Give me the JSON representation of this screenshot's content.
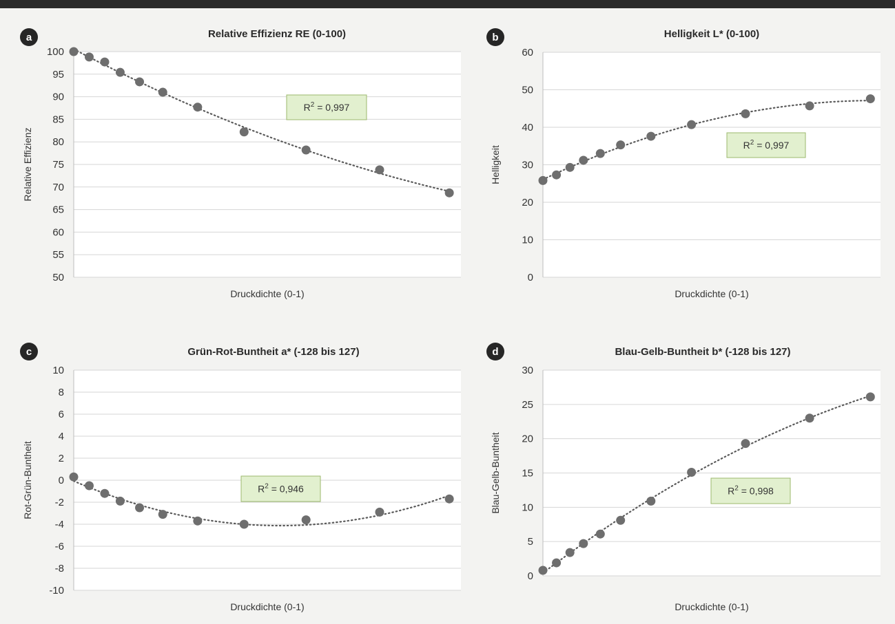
{
  "chart_data": [
    {
      "id": "a",
      "badge": "a",
      "type": "scatter",
      "title": "Relative Effizienz RE (0-100)",
      "xlabel": "Druckdichte (0-1)",
      "ylabel": "Relative Effizienz",
      "ylim": [
        50,
        100
      ],
      "yticks": [
        50,
        55,
        60,
        65,
        70,
        75,
        80,
        85,
        90,
        95,
        100
      ],
      "xlim": [
        0,
        1
      ],
      "grid": true,
      "x": [
        0.0,
        0.04,
        0.08,
        0.12,
        0.17,
        0.23,
        0.32,
        0.44,
        0.6,
        0.79,
        0.97
      ],
      "y": [
        100,
        98.8,
        97.7,
        95.4,
        93.3,
        91.0,
        87.7,
        82.2,
        78.2,
        73.8,
        68.7
      ],
      "fit_label_prefix": "R",
      "fit_label_sup": "2",
      "fit_label_value": " = 0,997",
      "trendline": "dotted",
      "colors": {
        "point": "#6e6e6e",
        "trend": "#5a5a5a",
        "r2_box": "#e2f0cf",
        "r2_border": "#9cb86e"
      }
    },
    {
      "id": "b",
      "badge": "b",
      "type": "scatter",
      "title": "Helligkeit L* (0-100)",
      "xlabel": "Druckdichte (0-1)",
      "ylabel": "Helligkeit",
      "ylim": [
        0,
        60
      ],
      "yticks": [
        0,
        10,
        20,
        30,
        40,
        50,
        60
      ],
      "xlim": [
        0,
        1
      ],
      "grid": true,
      "x": [
        0.0,
        0.04,
        0.08,
        0.12,
        0.17,
        0.23,
        0.32,
        0.44,
        0.6,
        0.79,
        0.97
      ],
      "y": [
        25.8,
        27.3,
        29.3,
        31.2,
        33.0,
        35.3,
        37.6,
        40.7,
        43.6,
        45.7,
        47.6
      ],
      "fit_label_prefix": "R",
      "fit_label_sup": "2",
      "fit_label_value": " = 0,997",
      "trendline": "dotted",
      "colors": {
        "point": "#6e6e6e",
        "trend": "#5a5a5a",
        "r2_box": "#e2f0cf",
        "r2_border": "#9cb86e"
      }
    },
    {
      "id": "c",
      "badge": "c",
      "type": "scatter",
      "title": "Grün-Rot-Buntheit a* (-128 bis 127)",
      "xlabel": "Druckdichte (0-1)",
      "ylabel": "Rot-Grün-Buntheit",
      "ylim": [
        -10,
        10
      ],
      "yticks": [
        -10,
        -8,
        -6,
        -4,
        -2,
        0,
        2,
        4,
        6,
        8,
        10
      ],
      "xlim": [
        0,
        1
      ],
      "grid": true,
      "x": [
        0.0,
        0.04,
        0.08,
        0.12,
        0.17,
        0.23,
        0.32,
        0.44,
        0.6,
        0.79,
        0.97
      ],
      "y": [
        0.3,
        -0.5,
        -1.2,
        -1.9,
        -2.5,
        -3.1,
        -3.7,
        -4.0,
        -3.6,
        -2.9,
        -1.7
      ],
      "fit_label_prefix": "R",
      "fit_label_sup": "2",
      "fit_label_value": " = 0,946",
      "trendline": "dotted",
      "colors": {
        "point": "#6e6e6e",
        "trend": "#5a5a5a",
        "r2_box": "#e2f0cf",
        "r2_border": "#9cb86e"
      }
    },
    {
      "id": "d",
      "badge": "d",
      "type": "scatter",
      "title": "Blau-Gelb-Buntheit b* (-128 bis 127)",
      "xlabel": "Druckdichte (0-1)",
      "ylabel": "Blau-Gelb-Buntheit",
      "ylim": [
        0,
        30
      ],
      "yticks": [
        0,
        5,
        10,
        15,
        20,
        25,
        30
      ],
      "xlim": [
        0,
        1
      ],
      "grid": true,
      "x": [
        0.0,
        0.04,
        0.08,
        0.12,
        0.17,
        0.23,
        0.32,
        0.44,
        0.6,
        0.79,
        0.97
      ],
      "y": [
        0.8,
        1.9,
        3.4,
        4.7,
        6.1,
        8.1,
        10.9,
        15.1,
        19.3,
        23.0,
        26.1
      ],
      "fit_label_prefix": "R",
      "fit_label_sup": "2",
      "fit_label_value": " = 0,998",
      "trendline": "dotted",
      "colors": {
        "point": "#6e6e6e",
        "trend": "#5a5a5a",
        "r2_box": "#e2f0cf",
        "r2_border": "#9cb86e"
      }
    }
  ],
  "colors": {
    "page_background": "#f3f3f1",
    "plot_background": "#ffffff",
    "grid": "#d6d6d6",
    "badge": "#262626",
    "top_bar": "#2b2b2b"
  }
}
